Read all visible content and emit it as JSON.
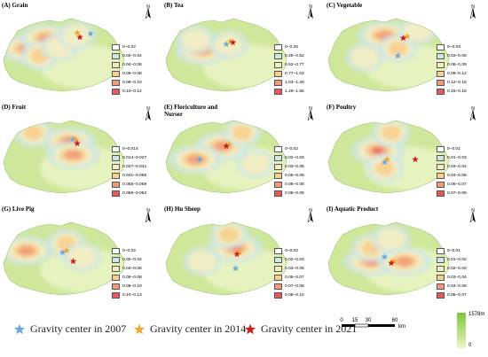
{
  "panels": [
    {
      "key": "A",
      "title": "(A) Grain",
      "legend": [
        "0–0.02",
        "0.02–0.04",
        "0.04–0.06",
        "0.06–0.08",
        "0.08–0.10",
        "0.10–0.12"
      ],
      "hotspots": [
        [
          0.2,
          0.5,
          3
        ],
        [
          0.35,
          0.38,
          3
        ],
        [
          0.3,
          0.58,
          2
        ],
        [
          0.45,
          0.48,
          1
        ],
        [
          0.58,
          0.35,
          1
        ]
      ],
      "stars": {
        "y2007": [
          0.68,
          0.33
        ],
        "y2014": [
          0.58,
          0.32
        ],
        "y2021": [
          0.6,
          0.37
        ]
      }
    },
    {
      "key": "B",
      "title": "(B) Tea",
      "legend": [
        "0–0.26",
        "0.26–0.52",
        "0.52–0.77",
        "0.77–1.03",
        "1.03–1.29",
        "1.29–1.55"
      ],
      "hotspots": [
        [
          0.3,
          0.52,
          3
        ],
        [
          0.5,
          0.45,
          1
        ],
        [
          0.25,
          0.4,
          1
        ]
      ],
      "stars": {
        "y2007": [
          0.48,
          0.45
        ],
        "y2014": [
          0.51,
          0.42
        ],
        "y2021": [
          0.53,
          0.43
        ]
      }
    },
    {
      "key": "C",
      "title": "(C) Vegetable",
      "legend": [
        "0–0.03",
        "0.03–0.06",
        "0.06–0.09",
        "0.09–0.12",
        "0.12–0.15",
        "0.15–0.18"
      ],
      "hotspots": [
        [
          0.45,
          0.35,
          3
        ],
        [
          0.55,
          0.5,
          2
        ],
        [
          0.3,
          0.6,
          1
        ],
        [
          0.7,
          0.3,
          1
        ]
      ],
      "stars": {
        "y2007": [
          0.55,
          0.58
        ],
        "y2014": [
          0.62,
          0.36
        ],
        "y2021": [
          0.59,
          0.38
        ]
      }
    },
    {
      "key": "D",
      "title": "(D) Fruit",
      "legend": [
        "0–0.014",
        "0.014–0.027",
        "0.027–0.041",
        "0.041–0.055",
        "0.055–0.069",
        "0.069–0.082"
      ],
      "hotspots": [
        [
          0.52,
          0.4,
          4
        ],
        [
          0.55,
          0.55,
          3
        ],
        [
          0.25,
          0.3,
          2
        ]
      ],
      "stars": {
        "y2007": [
          0.55,
          0.37
        ],
        "y2014": [
          0.57,
          0.38
        ],
        "y2021": [
          0.58,
          0.42
        ]
      }
    },
    {
      "key": "E",
      "title": "(E) Floriculture and Nurser",
      "legend": [
        "0–0.02",
        "0.02–0.03",
        "0.03–0.05",
        "0.05–0.06",
        "0.06–0.08",
        "0.08–0.09"
      ],
      "hotspots": [
        [
          0.45,
          0.45,
          3
        ],
        [
          0.25,
          0.6,
          3
        ],
        [
          0.6,
          0.3,
          2
        ],
        [
          0.7,
          0.65,
          1
        ]
      ],
      "stars": {
        "y2007": [
          0.28,
          0.6
        ],
        "y2014": [
          0.5,
          0.43
        ],
        "y2021": [
          0.48,
          0.45
        ]
      }
    },
    {
      "key": "F",
      "title": "(F) Poultry",
      "legend": [
        "0–0.01",
        "0.01–0.03",
        "0.03–0.04",
        "0.04–0.06",
        "0.06–0.07",
        "0.07–0.09"
      ],
      "hotspots": [
        [
          0.4,
          0.5,
          4
        ],
        [
          0.5,
          0.3,
          2
        ],
        [
          0.45,
          0.7,
          2
        ]
      ],
      "stars": {
        "y2007": [
          0.45,
          0.63
        ],
        "y2014": [
          0.47,
          0.6
        ],
        "y2021": [
          0.68,
          0.6
        ]
      }
    },
    {
      "key": "G",
      "title": "(G) Live Pig",
      "legend": [
        "0–0.02",
        "0.02–0.04",
        "0.04–0.06",
        "0.06–0.08",
        "0.08–0.10",
        "0.10–0.13"
      ],
      "hotspots": [
        [
          0.2,
          0.48,
          3
        ],
        [
          0.5,
          0.4,
          2
        ],
        [
          0.62,
          0.55,
          1
        ]
      ],
      "stars": {
        "y2007": [
          0.47,
          0.5
        ],
        "y2014": [
          0.5,
          0.48
        ],
        "y2021": [
          0.55,
          0.6
        ]
      }
    },
    {
      "key": "H",
      "title": "(H) Hu Sheep",
      "legend": [
        "0–0.02",
        "0.02–0.03",
        "0.03–0.05",
        "0.05–0.07",
        "0.07–0.08",
        "0.08–0.10"
      ],
      "hotspots": [
        [
          0.55,
          0.45,
          4
        ],
        [
          0.5,
          0.3,
          2
        ],
        [
          0.3,
          0.6,
          1
        ]
      ],
      "stars": {
        "y2007": [
          0.55,
          0.68
        ],
        "y2014": [
          0.58,
          0.5
        ],
        "y2021": [
          0.56,
          0.52
        ]
      }
    },
    {
      "key": "I",
      "title": "(I) Aquatic Product",
      "legend": [
        "0–0.01",
        "0.01–0.02",
        "0.02–0.03",
        "0.03–0.04",
        "0.04–0.06",
        "0.06–0.07"
      ],
      "hotspots": [
        [
          0.35,
          0.6,
          4
        ],
        [
          0.6,
          0.6,
          3
        ],
        [
          0.35,
          0.45,
          2
        ],
        [
          0.5,
          0.35,
          1
        ]
      ],
      "stars": {
        "y2007": [
          0.45,
          0.55
        ],
        "y2014": [
          0.52,
          0.6
        ],
        "y2021": [
          0.5,
          0.62
        ]
      }
    }
  ],
  "legend_colors": [
    "#ffffff",
    "#cfe6e4",
    "#f5edc2",
    "#f8cf8e",
    "#f19a78",
    "#e8595e"
  ],
  "bottom_legend": [
    {
      "key": "y2007",
      "label": "Gravity center in 2007",
      "color": "#6aa8e0"
    },
    {
      "key": "y2014",
      "label": "Gravity center in 2014",
      "color": "#f0a830"
    },
    {
      "key": "y2021",
      "label": "Gravity center in 2021",
      "color": "#c81e1e"
    }
  ],
  "scale": {
    "ticks": [
      "0",
      "15",
      "30",
      "60"
    ],
    "unit": "km"
  },
  "elevation": {
    "high": "1578m",
    "low": "0"
  },
  "north_label": "N"
}
